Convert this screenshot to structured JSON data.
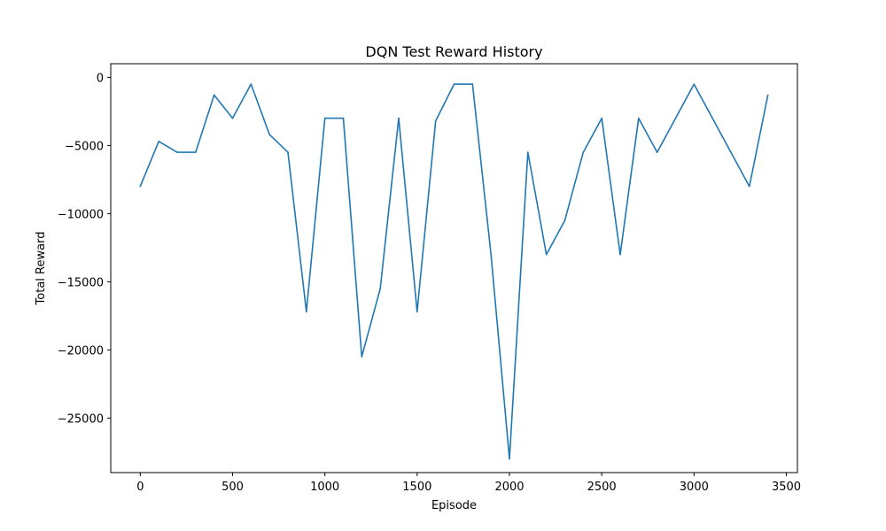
{
  "chart_data": {
    "type": "line",
    "title": "DQN Test Reward History",
    "xlabel": "Episode",
    "ylabel": "Total Reward",
    "xlim": [
      -160,
      3560
    ],
    "ylim": [
      -29000,
      1000
    ],
    "xticks": [
      0,
      500,
      1000,
      1500,
      2000,
      2500,
      3000,
      3500
    ],
    "xtick_labels": [
      "0",
      "500",
      "1000",
      "1500",
      "2000",
      "2500",
      "3000",
      "3500"
    ],
    "yticks": [
      0,
      -5000,
      -10000,
      -15000,
      -20000,
      -25000
    ],
    "ytick_labels": [
      "0",
      "−5000",
      "−10000",
      "−15000",
      "−20000",
      "−25000"
    ],
    "grid": false,
    "series": [
      {
        "color": "#1f77b4",
        "x": [
          0,
          100,
          200,
          300,
          400,
          500,
          600,
          700,
          800,
          900,
          1000,
          1100,
          1200,
          1300,
          1400,
          1500,
          1600,
          1700,
          1800,
          1900,
          2000,
          2100,
          2200,
          2300,
          2400,
          2500,
          2600,
          2700,
          2800,
          3000,
          3300,
          3400
        ],
        "values": [
          -8000,
          -4700,
          -5500,
          -5500,
          -1300,
          -3000,
          -500,
          -4200,
          -5500,
          -17200,
          -3000,
          -3000,
          -20500,
          -15500,
          -3000,
          -17200,
          -3200,
          -500,
          -500,
          -13000,
          -28000,
          -5500,
          -13000,
          -10500,
          -5500,
          -3000,
          -13000,
          -3000,
          -5500,
          -500,
          -8000,
          -1300
        ]
      }
    ]
  }
}
